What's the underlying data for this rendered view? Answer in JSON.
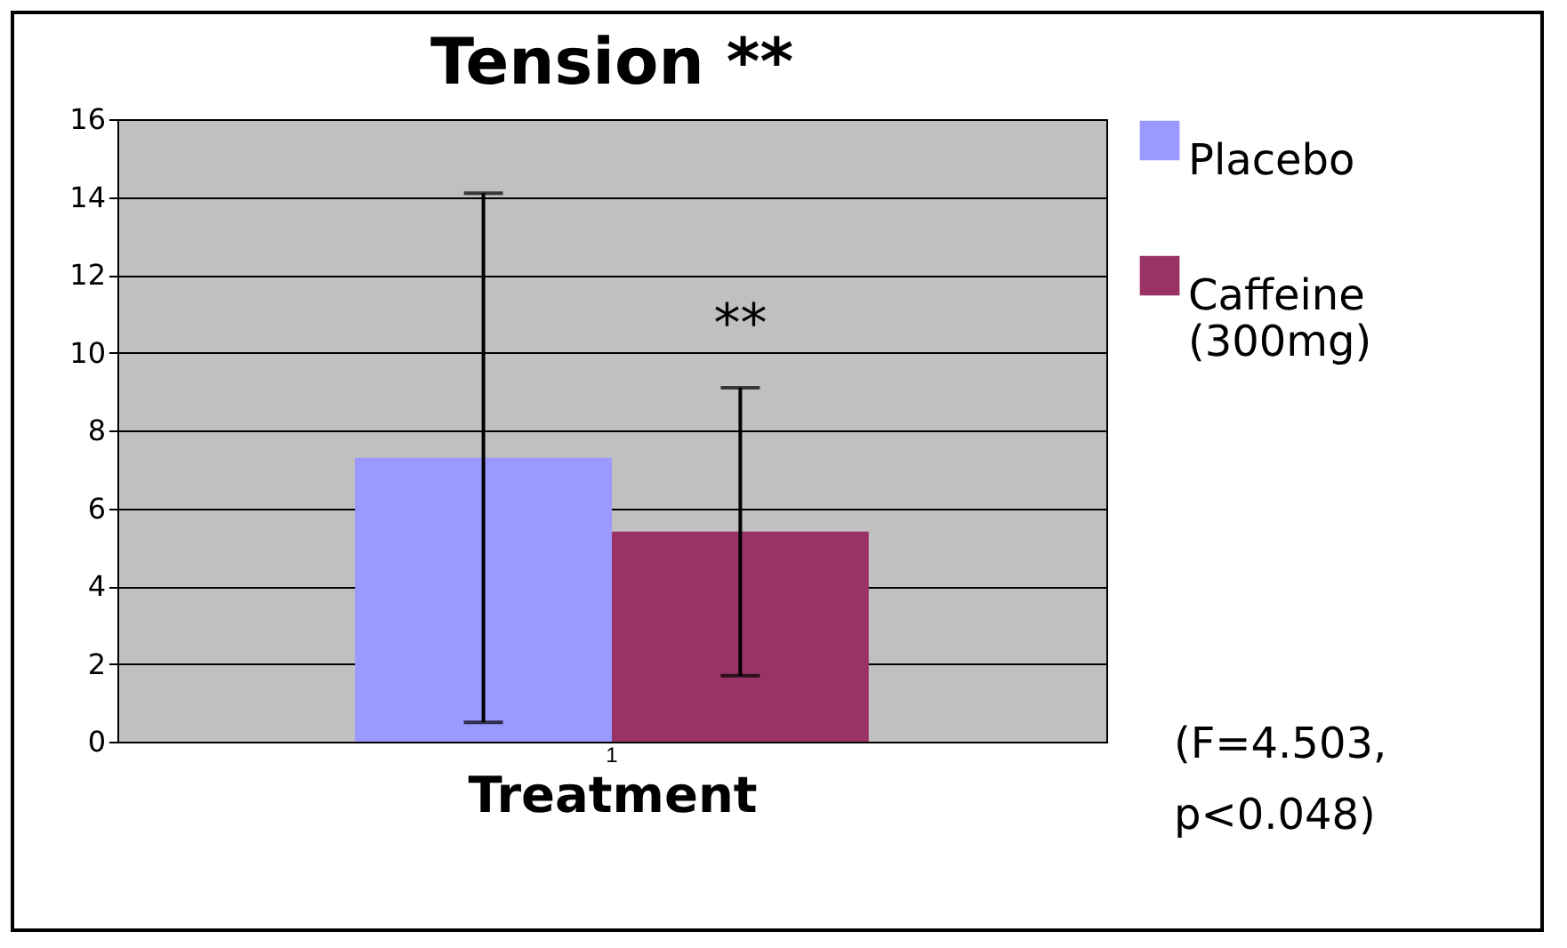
{
  "chart_data": {
    "type": "bar",
    "title": "Tension **",
    "xlabel": "Treatment",
    "categories": [
      "1"
    ],
    "series": [
      {
        "name": "Placebo",
        "color": "#9999ff",
        "values": [
          7.3
        ],
        "errors": [
          6.8
        ]
      },
      {
        "name": "Caffeine (300mg)",
        "color": "#993366",
        "values": [
          5.4
        ],
        "errors": [
          3.7
        ]
      }
    ],
    "ylim": [
      0,
      16
    ],
    "yticks": [
      0,
      2,
      4,
      6,
      8,
      10,
      12,
      14,
      16
    ],
    "grid": "y",
    "legend": "right",
    "annotations": [
      "**",
      "(F=4.503, p<0.048)"
    ]
  }
}
